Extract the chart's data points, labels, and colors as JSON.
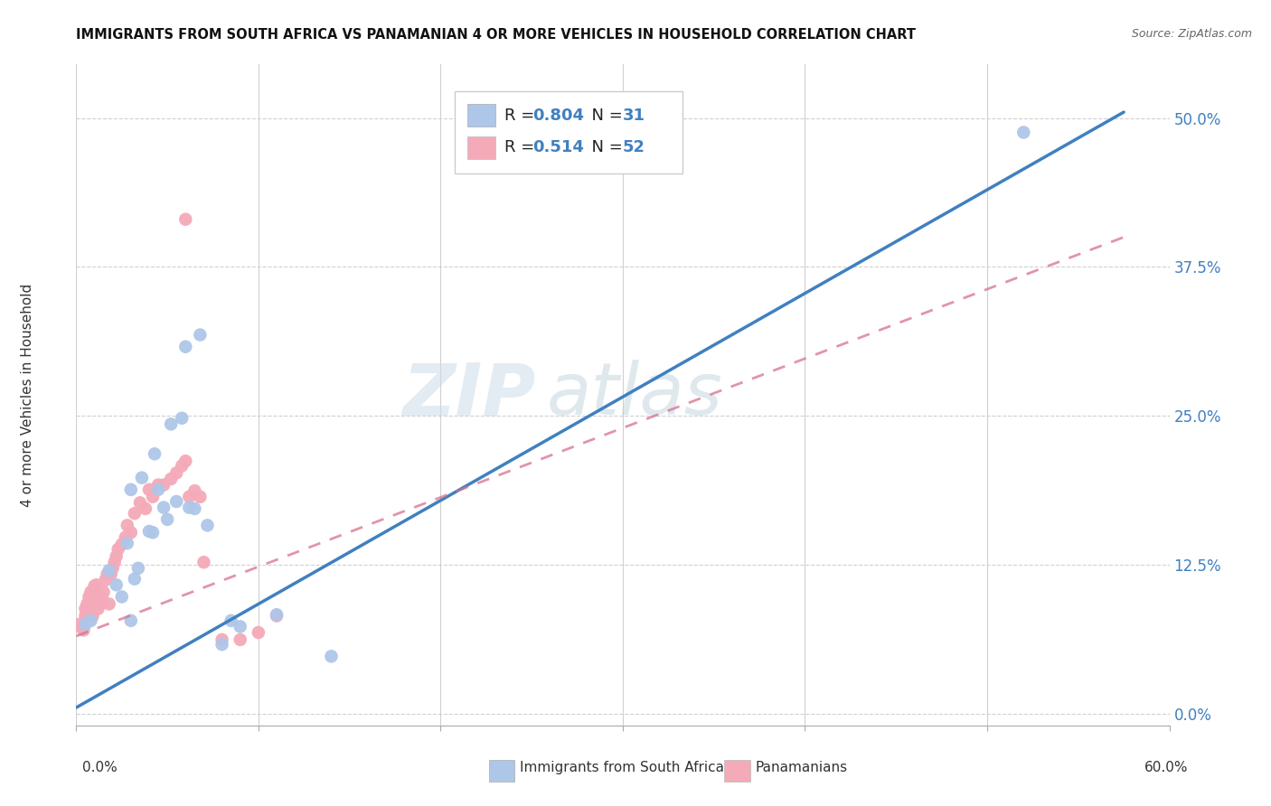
{
  "title": "IMMIGRANTS FROM SOUTH AFRICA VS PANAMANIAN 4 OR MORE VEHICLES IN HOUSEHOLD CORRELATION CHART",
  "source": "Source: ZipAtlas.com",
  "ylabel": "4 or more Vehicles in Household",
  "ytick_labels": [
    "0.0%",
    "12.5%",
    "25.0%",
    "37.5%",
    "50.0%"
  ],
  "ytick_positions": [
    0.0,
    0.125,
    0.25,
    0.375,
    0.5
  ],
  "xmin": 0.0,
  "xmax": 0.6,
  "ymin": -0.01,
  "ymax": 0.545,
  "r_blue": 0.804,
  "n_blue": 31,
  "r_pink": 0.514,
  "n_pink": 52,
  "legend_label_blue": "Immigrants from South Africa",
  "legend_label_pink": "Panamanians",
  "blue_dot_color": "#aec6e8",
  "pink_dot_color": "#f4aab8",
  "blue_line_color": "#4080c0",
  "pink_line_color": "#d87090",
  "blue_line_x0": 0.0,
  "blue_line_y0": 0.005,
  "blue_line_x1": 0.575,
  "blue_line_y1": 0.505,
  "pink_line_x0": 0.0,
  "pink_line_y0": 0.065,
  "pink_line_x1": 0.575,
  "pink_line_y1": 0.4,
  "watermark_zip": "ZIP",
  "watermark_atlas": "atlas",
  "blue_scatter_x": [
    0.005,
    0.008,
    0.018,
    0.022,
    0.025,
    0.028,
    0.03,
    0.032,
    0.034,
    0.036,
    0.04,
    0.042,
    0.043,
    0.045,
    0.048,
    0.05,
    0.052,
    0.055,
    0.058,
    0.06,
    0.062,
    0.065,
    0.068,
    0.072,
    0.08,
    0.085,
    0.09,
    0.11,
    0.14,
    0.52,
    0.03
  ],
  "blue_scatter_y": [
    0.075,
    0.078,
    0.12,
    0.108,
    0.098,
    0.143,
    0.188,
    0.113,
    0.122,
    0.198,
    0.153,
    0.152,
    0.218,
    0.188,
    0.173,
    0.163,
    0.243,
    0.178,
    0.248,
    0.308,
    0.173,
    0.172,
    0.318,
    0.158,
    0.058,
    0.078,
    0.073,
    0.083,
    0.048,
    0.488,
    0.078
  ],
  "pink_scatter_x": [
    0.002,
    0.003,
    0.004,
    0.005,
    0.005,
    0.006,
    0.006,
    0.007,
    0.007,
    0.008,
    0.008,
    0.009,
    0.01,
    0.01,
    0.011,
    0.012,
    0.013,
    0.013,
    0.014,
    0.015,
    0.016,
    0.017,
    0.018,
    0.019,
    0.02,
    0.021,
    0.022,
    0.023,
    0.025,
    0.027,
    0.028,
    0.03,
    0.032,
    0.035,
    0.038,
    0.04,
    0.042,
    0.045,
    0.048,
    0.052,
    0.055,
    0.058,
    0.06,
    0.062,
    0.065,
    0.068,
    0.07,
    0.08,
    0.09,
    0.1,
    0.11,
    0.06
  ],
  "pink_scatter_y": [
    0.075,
    0.072,
    0.07,
    0.082,
    0.088,
    0.085,
    0.092,
    0.09,
    0.098,
    0.097,
    0.102,
    0.082,
    0.1,
    0.107,
    0.108,
    0.088,
    0.092,
    0.098,
    0.097,
    0.102,
    0.112,
    0.117,
    0.092,
    0.117,
    0.122,
    0.127,
    0.132,
    0.138,
    0.142,
    0.148,
    0.158,
    0.152,
    0.168,
    0.177,
    0.172,
    0.188,
    0.182,
    0.192,
    0.192,
    0.197,
    0.202,
    0.208,
    0.212,
    0.182,
    0.187,
    0.182,
    0.127,
    0.062,
    0.062,
    0.068,
    0.082,
    0.415
  ]
}
